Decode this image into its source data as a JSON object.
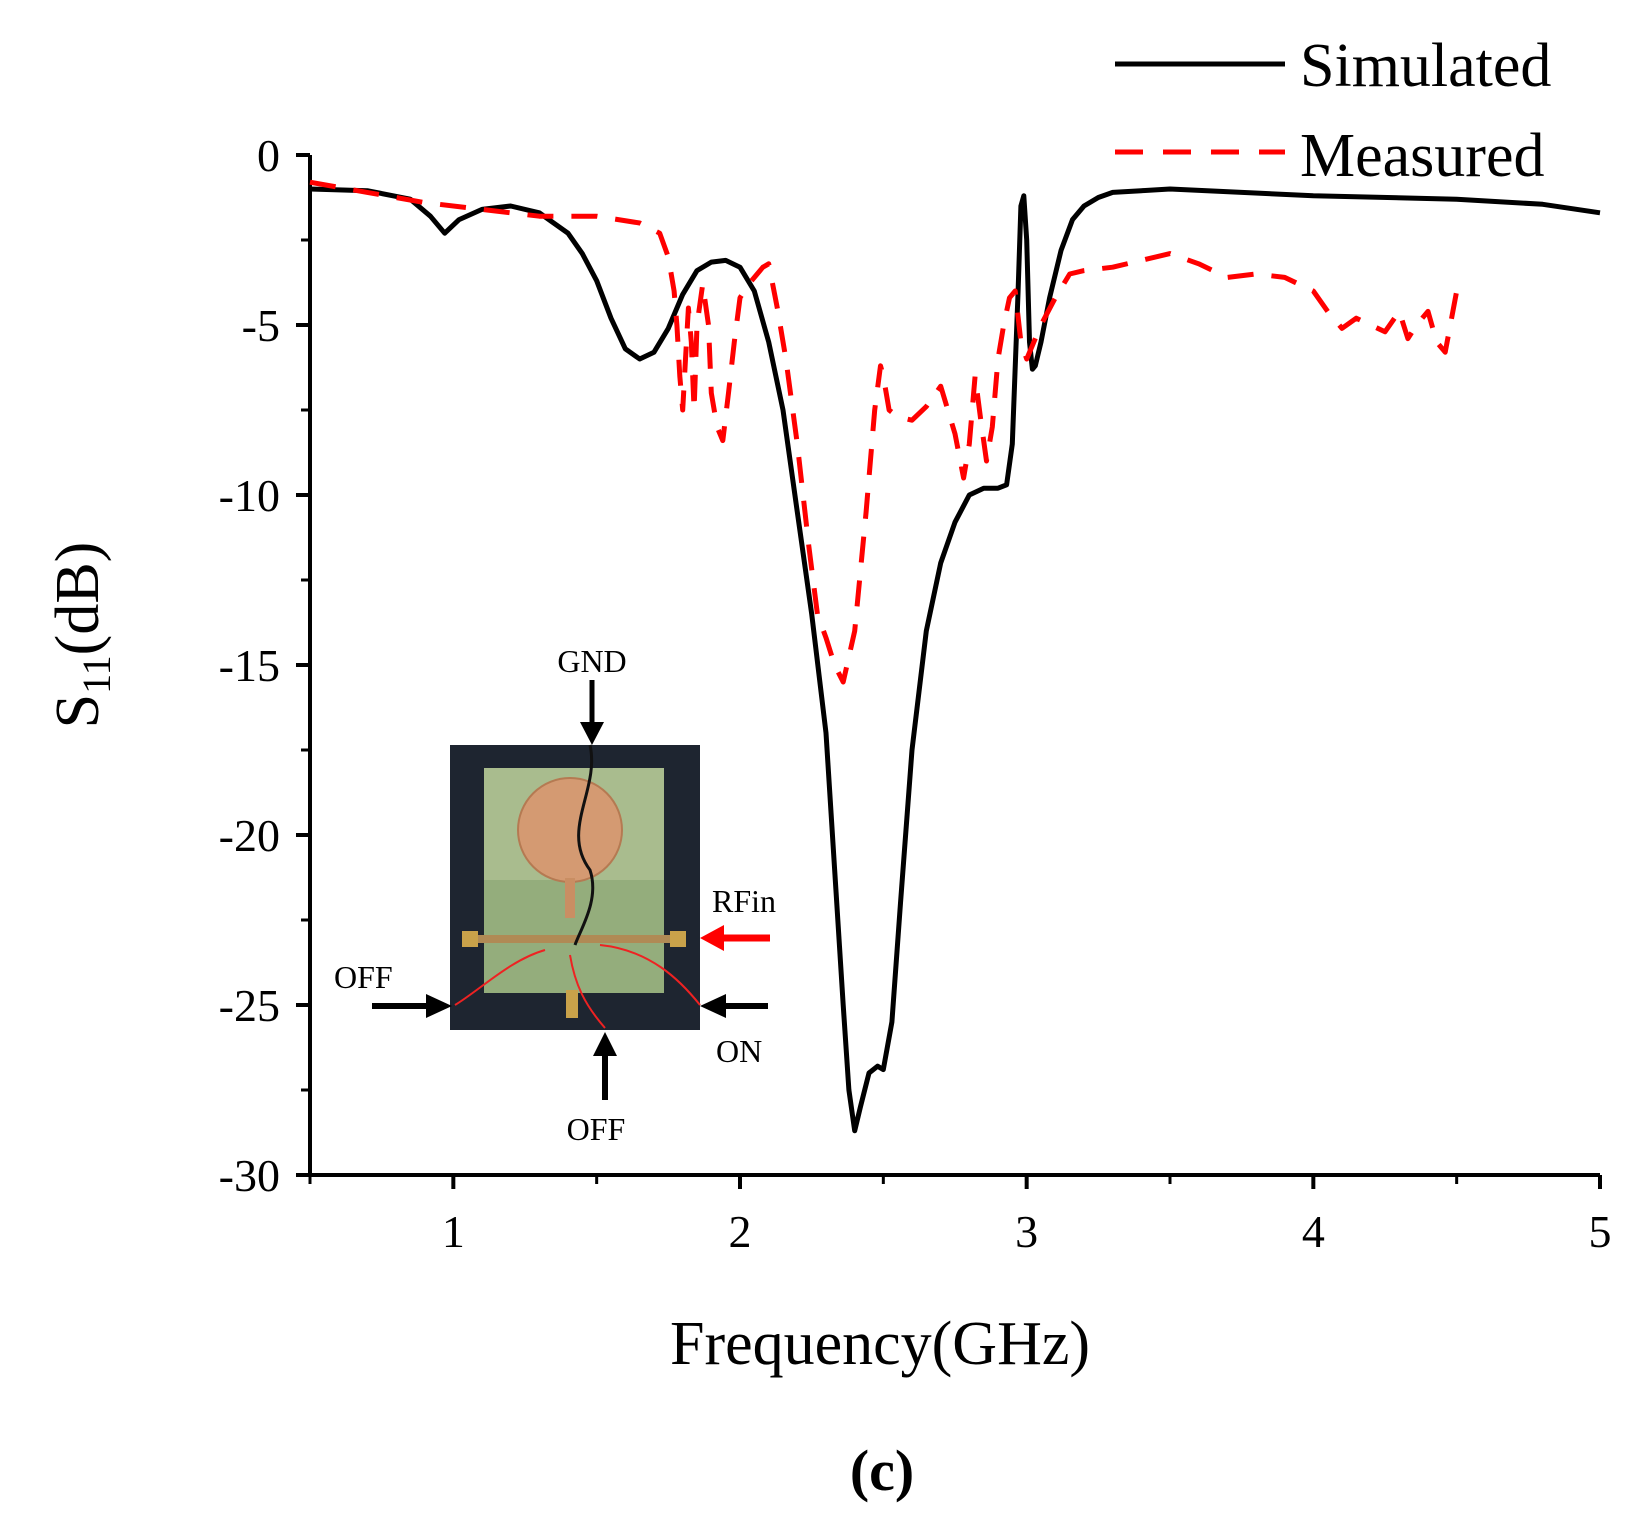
{
  "chart_data": {
    "type": "line",
    "title": "",
    "xlabel": "Frequency(GHz)",
    "ylabel_main": "S",
    "ylabel_sub": "11",
    "ylabel_unit": "(dB)",
    "xlim": [
      0.5,
      5
    ],
    "ylim": [
      -30,
      0
    ],
    "xticks": [
      1,
      2,
      3,
      4,
      5
    ],
    "xtick_labels": [
      "1",
      "2",
      "3",
      "4",
      "5"
    ],
    "yticks": [
      0,
      -5,
      -10,
      -15,
      -20,
      -25,
      -30
    ],
    "ytick_labels": [
      "0",
      "-5",
      "-10",
      "-15",
      "-20",
      "-25",
      "-30"
    ],
    "legend": [
      "Simulated",
      "Measured"
    ],
    "legend_position": "top-right",
    "panel_label": "(c)",
    "colors": {
      "simulated": "#000000",
      "measured": "#ff0000"
    },
    "series": [
      {
        "name": "Simulated",
        "style": "solid",
        "x": [
          0.5,
          0.7,
          0.85,
          0.92,
          0.97,
          1.02,
          1.1,
          1.2,
          1.3,
          1.4,
          1.45,
          1.5,
          1.55,
          1.6,
          1.65,
          1.7,
          1.75,
          1.8,
          1.85,
          1.9,
          1.95,
          2.0,
          2.05,
          2.1,
          2.15,
          2.2,
          2.25,
          2.3,
          2.33,
          2.36,
          2.38,
          2.4,
          2.42,
          2.45,
          2.48,
          2.5,
          2.53,
          2.56,
          2.6,
          2.65,
          2.7,
          2.75,
          2.8,
          2.85,
          2.9,
          2.93,
          2.95,
          2.97,
          2.98,
          2.99,
          3.0,
          3.01,
          3.02,
          3.03,
          3.05,
          3.08,
          3.12,
          3.16,
          3.2,
          3.25,
          3.3,
          3.4,
          3.5,
          4.0,
          4.5,
          4.8,
          5.0
        ],
        "y": [
          -1.0,
          -1.05,
          -1.3,
          -1.8,
          -2.3,
          -1.9,
          -1.6,
          -1.5,
          -1.7,
          -2.3,
          -2.9,
          -3.7,
          -4.8,
          -5.7,
          -6.0,
          -5.8,
          -5.1,
          -4.1,
          -3.4,
          -3.15,
          -3.1,
          -3.3,
          -4.0,
          -5.5,
          -7.5,
          -10.5,
          -13.5,
          -17.0,
          -21.0,
          -25.0,
          -27.5,
          -28.7,
          -28.0,
          -27.0,
          -26.8,
          -26.9,
          -25.5,
          -22.0,
          -17.5,
          -14.0,
          -12.0,
          -10.8,
          -10.0,
          -9.8,
          -9.8,
          -9.7,
          -8.5,
          -4.0,
          -1.5,
          -1.2,
          -2.5,
          -5.5,
          -6.3,
          -6.2,
          -5.5,
          -4.2,
          -2.8,
          -1.9,
          -1.5,
          -1.25,
          -1.1,
          -1.05,
          -1.0,
          -1.2,
          -1.3,
          -1.45,
          -1.7
        ]
      },
      {
        "name": "Measured",
        "style": "dashed",
        "x": [
          0.5,
          0.7,
          0.9,
          1.1,
          1.3,
          1.5,
          1.65,
          1.72,
          1.75,
          1.77,
          1.78,
          1.79,
          1.8,
          1.81,
          1.82,
          1.83,
          1.84,
          1.85,
          1.87,
          1.89,
          1.9,
          1.92,
          1.94,
          1.96,
          1.98,
          2.0,
          2.03,
          2.06,
          2.08,
          2.1,
          2.13,
          2.16,
          2.2,
          2.24,
          2.27,
          2.3,
          2.33,
          2.36,
          2.4,
          2.44,
          2.47,
          2.49,
          2.5,
          2.52,
          2.55,
          2.6,
          2.65,
          2.7,
          2.75,
          2.78,
          2.8,
          2.82,
          2.84,
          2.86,
          2.88,
          2.9,
          2.92,
          2.94,
          2.96,
          2.98,
          3.0,
          3.05,
          3.1,
          3.15,
          3.2,
          3.3,
          3.4,
          3.5,
          3.6,
          3.7,
          3.8,
          3.9,
          4.0,
          4.05,
          4.1,
          4.15,
          4.2,
          4.25,
          4.3,
          4.33,
          4.36,
          4.4,
          4.43,
          4.46,
          4.5
        ],
        "y": [
          -0.8,
          -1.1,
          -1.4,
          -1.6,
          -1.8,
          -1.8,
          -2.0,
          -2.3,
          -3.0,
          -4.0,
          -5.0,
          -6.5,
          -7.5,
          -6.0,
          -4.5,
          -5.5,
          -7.5,
          -5.0,
          -3.8,
          -5.0,
          -7.0,
          -8.0,
          -8.4,
          -7.0,
          -5.5,
          -4.2,
          -3.8,
          -3.5,
          -3.3,
          -3.2,
          -4.5,
          -6.0,
          -8.5,
          -11.5,
          -13.5,
          -14.2,
          -15.0,
          -15.5,
          -14.0,
          -10.5,
          -7.5,
          -6.2,
          -6.5,
          -7.5,
          -7.7,
          -7.8,
          -7.4,
          -6.8,
          -8.2,
          -9.5,
          -8.5,
          -6.5,
          -7.8,
          -9.0,
          -8.0,
          -6.0,
          -5.0,
          -4.2,
          -4.0,
          -5.5,
          -6.0,
          -5.0,
          -4.2,
          -3.5,
          -3.4,
          -3.3,
          -3.1,
          -2.9,
          -3.2,
          -3.6,
          -3.5,
          -3.6,
          -4.0,
          -4.6,
          -5.1,
          -4.8,
          -5.0,
          -5.2,
          -4.6,
          -5.4,
          -5.0,
          -4.6,
          -5.5,
          -5.8,
          -4.0
        ]
      }
    ]
  },
  "inset": {
    "labels": {
      "gnd": "GND",
      "rfin": "RFin",
      "off_left": "OFF",
      "on": "ON",
      "off_bottom": "OFF"
    }
  }
}
